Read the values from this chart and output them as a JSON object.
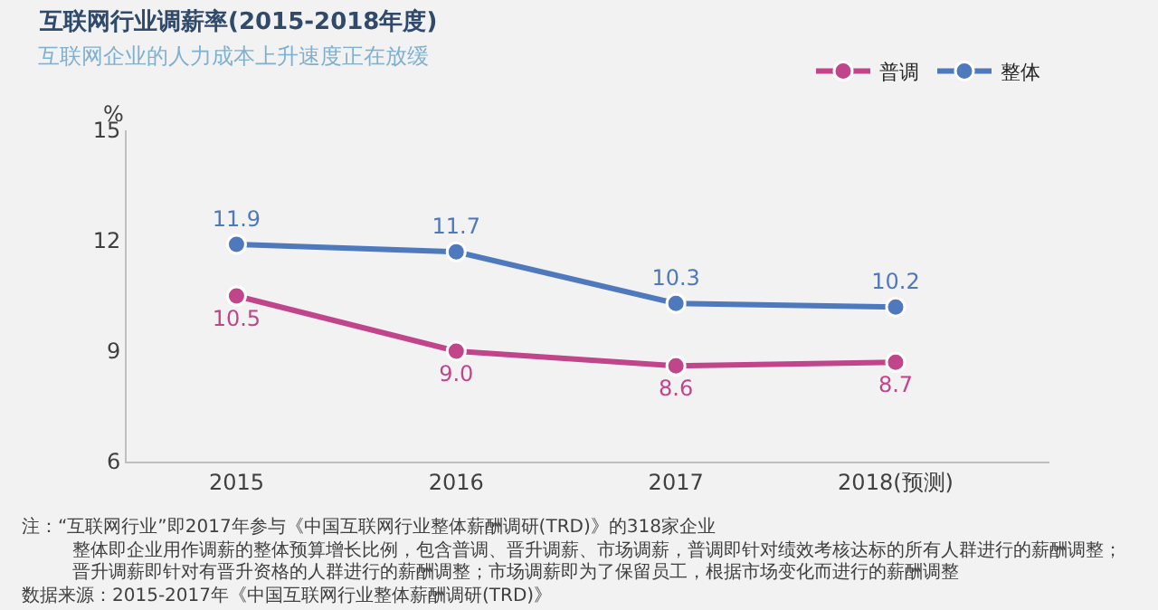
{
  "chart_data": {
    "type": "line",
    "title": "互联网行业调薪率(2015-2018年度)",
    "subtitle": "互联网企业的人力成本上升速度正在放缓",
    "ylabel": "%",
    "categories": [
      "2015",
      "2016",
      "2017",
      "2018(预测)"
    ],
    "series": [
      {
        "name": "普调",
        "color": "#c0458a",
        "values": [
          10.5,
          9.0,
          8.6,
          8.7
        ],
        "value_labels": [
          "10.5",
          "9.0",
          "8.6",
          "8.7"
        ]
      },
      {
        "name": "整体",
        "color": "#4f79bd",
        "values": [
          11.9,
          11.7,
          10.3,
          10.2
        ],
        "value_labels": [
          "11.9",
          "11.7",
          "10.3",
          "10.2"
        ]
      }
    ],
    "ylim": [
      6,
      15
    ],
    "yticks": [
      6,
      9,
      12,
      15
    ],
    "grid": false,
    "legend": "top right",
    "marker": "circle",
    "line_style": "solid",
    "annotations": [
      "注：“互联网行业”即2017年参与《中国互联网行业整体薪酬调研(TRD)》的318家企业",
      "整体即企业用作调薪的整体预算增长比例，包含普调、晋升调薪、市场调薪，普调即针对绩效考核达标的所有人群进行的薪酬调整；",
      "晋升调薪即针对有晋升资格的人群进行的薪酬调整；市场调薪即为了保留员工，根据市场变化而进行的薪酬调整",
      "数据来源：2015-2017年《中国互联网行业整体薪酬调研(TRD)》"
    ]
  }
}
